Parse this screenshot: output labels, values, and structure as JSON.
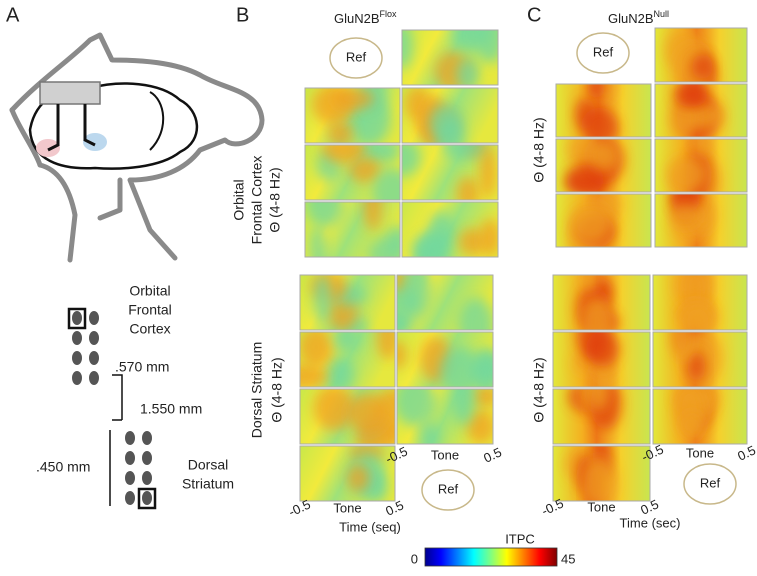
{
  "panel_a": {
    "label": "A",
    "ofc_label": [
      "Orbital",
      "Frontal",
      "Cortex"
    ],
    "spacing": [
      ".570 mm",
      "1.550 mm",
      ".450 mm"
    ],
    "ds_label": [
      "Dorsal",
      "Striatum"
    ]
  },
  "panel_b": {
    "label": "B",
    "title": "GluN2B",
    "title_sup": "Flox",
    "ref": "Ref",
    "ofc_ylabel": [
      "Orbital",
      "Frontal Cortex",
      "Θ (4-8 Hz)"
    ],
    "ds_ylabel": [
      "Dorsal Striatum",
      "Θ (4-8 Hz)"
    ],
    "xticks": [
      "-0.5",
      "Tone",
      "0.5"
    ],
    "xlabel": "Time (seq)"
  },
  "panel_c": {
    "label": "C",
    "title": "GluN2B",
    "title_sup": "Null",
    "ref": "Ref",
    "ylabel": "Θ (4-8 Hz)",
    "xticks": [
      "-0.5",
      "Tone",
      "0.5"
    ],
    "xlabel": "Time (sec)"
  },
  "colorbar": {
    "title": "ITPC",
    "min": "0",
    "max": "45"
  }
}
